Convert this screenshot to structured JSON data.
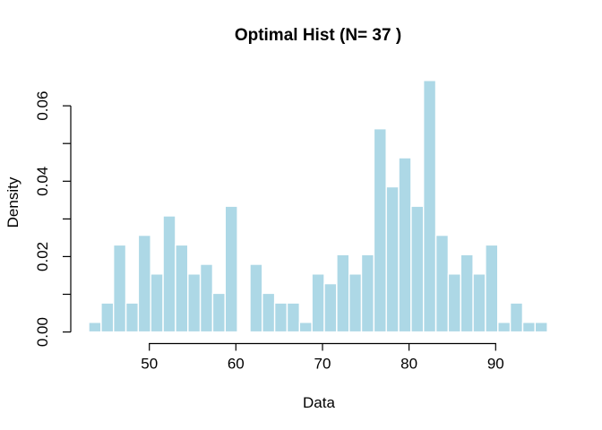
{
  "title": "Optimal Hist (N= 37 )",
  "colors": {
    "background": "#ffffff",
    "bar_fill": "#ADD8E6",
    "bar_border": "#FFFFFF",
    "axis": "#000000",
    "text": "#000000"
  },
  "chart_data": {
    "type": "bar",
    "subtype": "histogram",
    "title": "Optimal Hist (N= 37 )",
    "xlabel": "Data",
    "ylabel": "Density",
    "n_bins": 37,
    "bin_start": 43.0,
    "bin_width": 1.432,
    "counts": [
      1,
      3,
      9,
      3,
      10,
      6,
      12,
      9,
      6,
      7,
      4,
      13,
      0,
      7,
      4,
      3,
      3,
      1,
      6,
      5,
      8,
      6,
      8,
      21,
      15,
      18,
      13,
      26,
      10,
      6,
      8,
      6,
      9,
      1,
      3,
      1,
      1
    ],
    "densities": [
      0.00257,
      0.0077,
      0.0231,
      0.0077,
      0.02567,
      0.0154,
      0.0308,
      0.0231,
      0.0154,
      0.01797,
      0.01027,
      0.03337,
      0,
      0.01797,
      0.01027,
      0.0077,
      0.0077,
      0.00257,
      0.0154,
      0.01284,
      0.02054,
      0.0154,
      0.02054,
      0.05391,
      0.03851,
      0.04621,
      0.03337,
      0.06674,
      0.02567,
      0.0154,
      0.02054,
      0.0154,
      0.0231,
      0.00257,
      0.0077,
      0.00257,
      0.00257
    ],
    "x_ticks": [
      {
        "value": 50,
        "label": "50"
      },
      {
        "value": 60,
        "label": "60"
      },
      {
        "value": 70,
        "label": "70"
      },
      {
        "value": 80,
        "label": "80"
      },
      {
        "value": 90,
        "label": "90"
      }
    ],
    "y_ticks": [
      {
        "value": 0.0,
        "label": "0.00"
      },
      {
        "value": 0.01,
        "label": ""
      },
      {
        "value": 0.02,
        "label": "0.02"
      },
      {
        "value": 0.03,
        "label": ""
      },
      {
        "value": 0.04,
        "label": "0.04"
      },
      {
        "value": 0.05,
        "label": ""
      },
      {
        "value": 0.06,
        "label": "0.06"
      }
    ],
    "xlim": [
      43.0,
      96.0
    ],
    "ylim": [
      0,
      0.0667
    ],
    "grid": false,
    "legend": false
  }
}
